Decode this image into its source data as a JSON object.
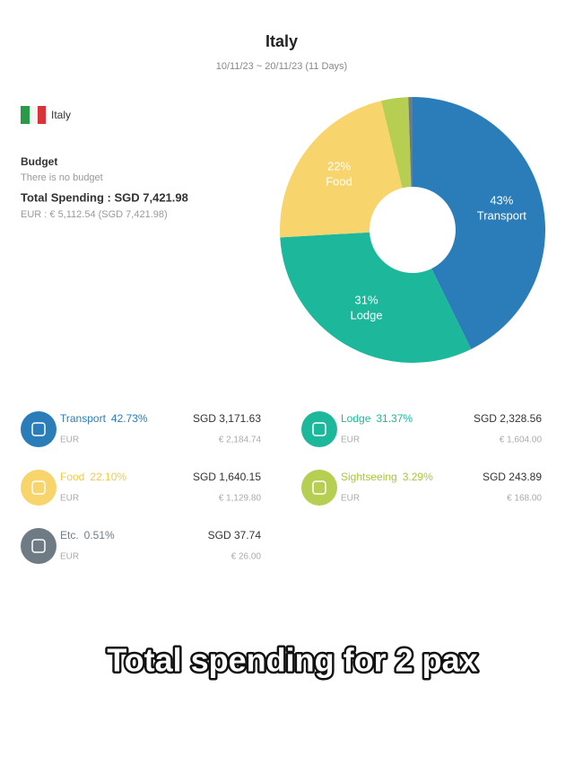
{
  "header": {
    "title": "Italy",
    "dates": "10/11/23 ~ 20/11/23 (11 Days)"
  },
  "summary": {
    "country": "Italy",
    "budget_title": "Budget",
    "budget_text": "There is no budget",
    "total": "Total Spending : SGD 7,421.98",
    "eur_total": "EUR : € 5,112.54 (SGD 7,421.98)"
  },
  "chart_data": {
    "type": "pie",
    "categories": [
      "Transport",
      "Lodge",
      "Food",
      "Sightseeing",
      "Etc."
    ],
    "values": [
      42.73,
      31.37,
      22.1,
      3.29,
      0.51
    ],
    "value_labels": [
      "43%",
      "31%",
      "22%",
      null,
      null
    ],
    "colors": [
      "#2a7db8",
      "#1db89b",
      "#f8d46c",
      "#b6ce52",
      "#6e7b84"
    ]
  },
  "items": [
    {
      "name": "Transport",
      "percent": "42.73%",
      "amount": "SGD 3,171.63",
      "currency": "EUR",
      "converted": "€ 2,184.74"
    },
    {
      "name": "Lodge",
      "percent": "31.37%",
      "amount": "SGD 2,328.56",
      "currency": "EUR",
      "converted": "€ 1,604.00"
    },
    {
      "name": "Food",
      "percent": "22.10%",
      "amount": "SGD 1,640.15",
      "currency": "EUR",
      "converted": "€ 1,129.80"
    },
    {
      "name": "Sightseeing",
      "percent": "3.29%",
      "amount": "SGD 243.89",
      "currency": "EUR",
      "converted": "€ 168.00"
    },
    {
      "name": "Etc.",
      "percent": "0.51%",
      "amount": "SGD 37.74",
      "currency": "EUR",
      "converted": "€ 26.00"
    }
  ],
  "caption": "Total spending for 2 pax"
}
